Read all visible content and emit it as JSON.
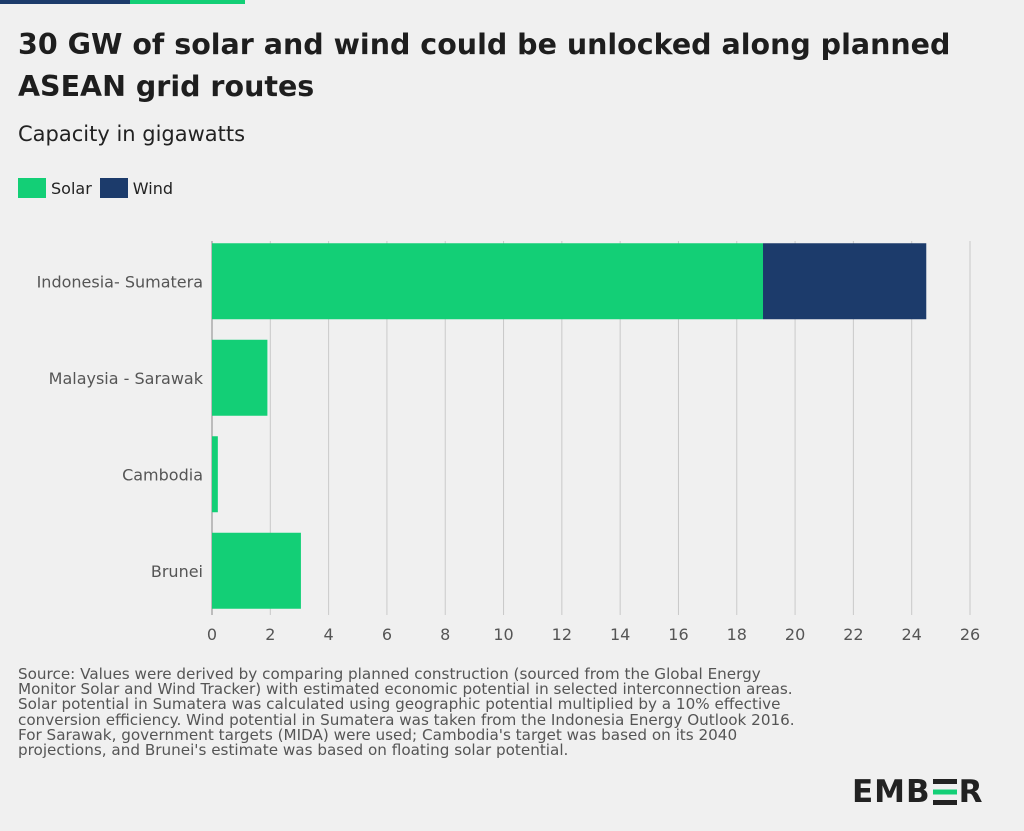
{
  "header": {
    "title": "30 GW of solar and wind could be unlocked along planned ASEAN grid routes",
    "subtitle": "Capacity in gigawatts"
  },
  "colors": {
    "solar": "#13cf76",
    "wind": "#1c3b6b",
    "topbar_dark": "#1c3b6b",
    "topbar_green": "#13cf76"
  },
  "chart_data": {
    "type": "bar",
    "orientation": "horizontal",
    "stacked": true,
    "categories": [
      "Indonesia- Sumatera",
      "Malaysia - Sarawak",
      "Cambodia",
      "Brunei"
    ],
    "series": [
      {
        "name": "Solar",
        "values": [
          18.9,
          1.9,
          0.2,
          3.05
        ]
      },
      {
        "name": "Wind",
        "values": [
          5.6,
          0,
          0,
          0
        ]
      }
    ],
    "xlim": [
      0,
      26
    ],
    "xticks": [
      "0",
      "2",
      "4",
      "6",
      "8",
      "10",
      "12",
      "14",
      "16",
      "18",
      "20",
      "22",
      "24",
      "26"
    ],
    "grid": true,
    "legend_position": "top-left"
  },
  "source": {
    "lines": [
      "Source: Values were derived by comparing planned construction (sourced from the Global Energy Monitor Solar and Wind Tracker) with estimated economic potential in selected interconnection areas.",
      "Solar potential in Sumatera was calculated using geographic potential multiplied by a 10% effective conversion efficiency. Wind potential in Sumatera was taken from the Indonesia Energy Outlook 2016. For Sarawak, government targets (MIDA) were used; Cambodia's target was based on its 2040 projections, and Brunei's estimate was based on floating solar potential."
    ]
  },
  "logo": {
    "left": "EMB",
    "right": "R",
    "icon": "ember-e-icon"
  }
}
